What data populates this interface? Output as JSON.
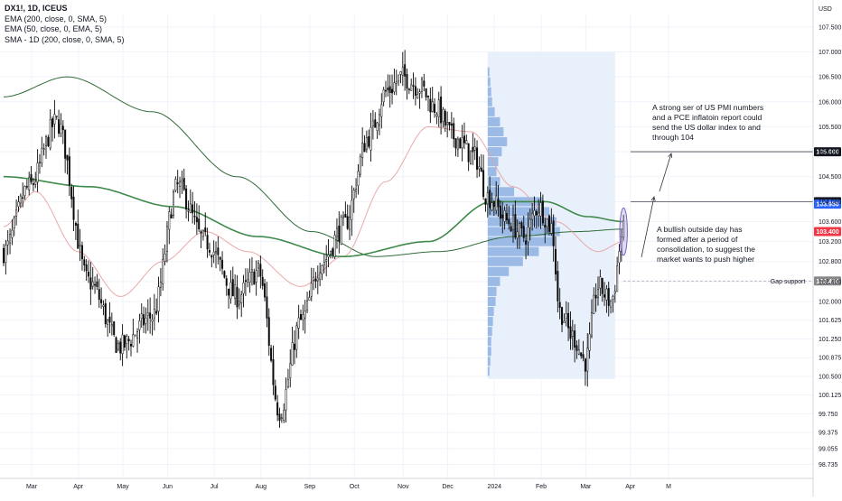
{
  "header": {
    "symbol": "DX1!, 1D, ICEUS",
    "indicators": [
      "EMA (200, close, 0, SMA, 5)",
      "EMA (50, close, 0, EMA, 5)",
      "SMA - 1D (200, close, 0, SMA, 5)"
    ],
    "currency": "USD"
  },
  "colors": {
    "bull": "#0a0a0a",
    "bear": "#0a0a0a",
    "ema200": "#2e6b3a",
    "ema50": "#e8a0a0",
    "sma200": "#3f8a4a",
    "volume_profile": "#5b8fd6",
    "vp_area": "#e8f0fb",
    "badge_dark": "#131722",
    "badge_blue": "#2962ff",
    "badge_red": "#f23645",
    "badge_gray": "#888888",
    "grid": "#f0f3fa"
  },
  "chart_data": {
    "type": "candlestick",
    "title": "DX1!, 1D, ICEUS",
    "x_ticks": [
      "Mar",
      "Apr",
      "May",
      "Jun",
      "Jul",
      "Aug",
      "Sep",
      "Oct",
      "Nov",
      "Dec",
      "2024",
      "Feb",
      "Mar",
      "Apr",
      "M"
    ],
    "y_ticks": [
      "107.500",
      "107.000",
      "106.500",
      "106.000",
      "105.500",
      "105.000",
      "104.500",
      "104.000",
      "103.600",
      "103.200",
      "102.800",
      "102.400",
      "102.000",
      "101.625",
      "101.250",
      "100.875",
      "100.500",
      "100.125",
      "99.750",
      "99.375",
      "99.055",
      "98.735"
    ],
    "ylim": [
      98.6,
      107.75
    ],
    "grid": true,
    "price_anchors": [
      {
        "x": 0,
        "close": 103.0
      },
      {
        "x": 12,
        "close": 104.3
      },
      {
        "x": 25,
        "close": 105.6
      },
      {
        "x": 40,
        "close": 102.4
      },
      {
        "x": 55,
        "close": 101.1
      },
      {
        "x": 70,
        "close": 101.7
      },
      {
        "x": 82,
        "close": 104.3
      },
      {
        "x": 95,
        "close": 103.2
      },
      {
        "x": 110,
        "close": 102.1
      },
      {
        "x": 120,
        "close": 102.6
      },
      {
        "x": 130,
        "close": 99.8
      },
      {
        "x": 140,
        "close": 101.6
      },
      {
        "x": 150,
        "close": 102.8
      },
      {
        "x": 160,
        "close": 103.5
      },
      {
        "x": 172,
        "close": 105.3
      },
      {
        "x": 180,
        "close": 106.2
      },
      {
        "x": 188,
        "close": 106.5
      },
      {
        "x": 196,
        "close": 106.3
      },
      {
        "x": 203,
        "close": 105.9
      },
      {
        "x": 212,
        "close": 105.3
      },
      {
        "x": 222,
        "close": 104.9
      },
      {
        "x": 228,
        "close": 104.1
      },
      {
        "x": 238,
        "close": 103.6
      },
      {
        "x": 245,
        "close": 103.3
      },
      {
        "x": 252,
        "close": 103.9
      },
      {
        "x": 258,
        "close": 103.5
      },
      {
        "x": 262,
        "close": 101.8
      },
      {
        "x": 268,
        "close": 101.3
      },
      {
        "x": 274,
        "close": 100.8
      },
      {
        "x": 280,
        "close": 102.3
      },
      {
        "x": 286,
        "close": 102.0
      },
      {
        "x": 292,
        "close": 103.4
      }
    ],
    "volume_profile": [
      {
        "price": 106.6,
        "vol": 2
      },
      {
        "price": 106.4,
        "vol": 3
      },
      {
        "price": 106.2,
        "vol": 4
      },
      {
        "price": 106.0,
        "vol": 5
      },
      {
        "price": 105.8,
        "vol": 8
      },
      {
        "price": 105.6,
        "vol": 14
      },
      {
        "price": 105.4,
        "vol": 18
      },
      {
        "price": 105.2,
        "vol": 22
      },
      {
        "price": 105.0,
        "vol": 16
      },
      {
        "price": 104.8,
        "vol": 12
      },
      {
        "price": 104.6,
        "vol": 10
      },
      {
        "price": 104.4,
        "vol": 14
      },
      {
        "price": 104.2,
        "vol": 30
      },
      {
        "price": 104.0,
        "vol": 62
      },
      {
        "price": 103.8,
        "vol": 70
      },
      {
        "price": 103.6,
        "vol": 78
      },
      {
        "price": 103.4,
        "vol": 82
      },
      {
        "price": 103.2,
        "vol": 76
      },
      {
        "price": 103.0,
        "vol": 58
      },
      {
        "price": 102.8,
        "vol": 40
      },
      {
        "price": 102.6,
        "vol": 24
      },
      {
        "price": 102.4,
        "vol": 14
      },
      {
        "price": 102.2,
        "vol": 10
      },
      {
        "price": 102.0,
        "vol": 9
      },
      {
        "price": 101.8,
        "vol": 7
      },
      {
        "price": 101.6,
        "vol": 6
      },
      {
        "price": 101.4,
        "vol": 5
      },
      {
        "price": 101.2,
        "vol": 4
      },
      {
        "price": 101.0,
        "vol": 4
      },
      {
        "price": 100.8,
        "vol": 3
      },
      {
        "price": 100.6,
        "vol": 2
      }
    ],
    "ema200_anchors": [
      {
        "x": 0,
        "y": 106.1
      },
      {
        "x": 30,
        "y": 106.5
      },
      {
        "x": 70,
        "y": 105.8
      },
      {
        "x": 110,
        "y": 104.5
      },
      {
        "x": 145,
        "y": 103.4
      },
      {
        "x": 175,
        "y": 102.9
      },
      {
        "x": 205,
        "y": 103.0
      },
      {
        "x": 240,
        "y": 103.3
      },
      {
        "x": 270,
        "y": 103.4
      },
      {
        "x": 292,
        "y": 103.45
      }
    ],
    "ema50_anchors": [
      {
        "x": 0,
        "y": 103.5
      },
      {
        "x": 15,
        "y": 104.2
      },
      {
        "x": 35,
        "y": 103.0
      },
      {
        "x": 55,
        "y": 102.1
      },
      {
        "x": 75,
        "y": 102.8
      },
      {
        "x": 95,
        "y": 103.4
      },
      {
        "x": 115,
        "y": 103.0
      },
      {
        "x": 140,
        "y": 102.3
      },
      {
        "x": 160,
        "y": 102.9
      },
      {
        "x": 180,
        "y": 104.4
      },
      {
        "x": 200,
        "y": 105.5
      },
      {
        "x": 220,
        "y": 105.4
      },
      {
        "x": 240,
        "y": 104.3
      },
      {
        "x": 260,
        "y": 103.6
      },
      {
        "x": 280,
        "y": 103.0
      },
      {
        "x": 292,
        "y": 103.2
      }
    ],
    "sma200_anchors": [
      {
        "x": 0,
        "y": 104.5
      },
      {
        "x": 40,
        "y": 104.3
      },
      {
        "x": 80,
        "y": 103.9
      },
      {
        "x": 120,
        "y": 103.3
      },
      {
        "x": 160,
        "y": 102.9
      },
      {
        "x": 200,
        "y": 103.2
      },
      {
        "x": 230,
        "y": 104.0
      },
      {
        "x": 255,
        "y": 104.0
      },
      {
        "x": 275,
        "y": 103.7
      },
      {
        "x": 292,
        "y": 103.6
      }
    ]
  },
  "price_badges": [
    {
      "label": "105.000",
      "price": 105.0,
      "color": "#131722"
    },
    {
      "label": "104.000",
      "price": 104.0,
      "color": "#131722"
    },
    {
      "label": "103.950",
      "price": 103.95,
      "color": "#2962ff"
    },
    {
      "label": "103.400",
      "price": 103.4,
      "color": "#f23645"
    },
    {
      "label": "102.410",
      "price": 102.41,
      "color": "#888888"
    }
  ],
  "annotations": {
    "top_note": [
      "A strong ser of US PMI numbers",
      "and a PCE inflatoin report could",
      "send the US dollar index to and",
      "through 104"
    ],
    "bottom_note": [
      "A bullish outside day has",
      "formed after a period of",
      "consolidation, to suggest the",
      "market wants to push higher"
    ],
    "gap_label": "Gap support"
  }
}
